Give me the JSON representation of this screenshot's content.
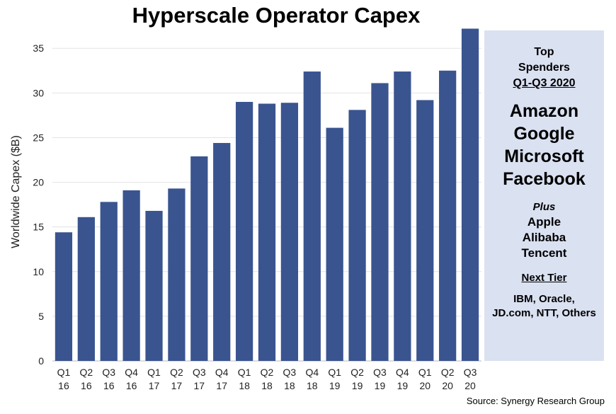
{
  "chart_data": {
    "type": "bar",
    "title": "Hyperscale Operator Capex",
    "xlabel": "",
    "ylabel": "Worldwide Capex ($B)",
    "ylim": [
      0,
      37
    ],
    "yticks": [
      0,
      5,
      10,
      15,
      20,
      25,
      30,
      35
    ],
    "grid": true,
    "bar_color": "#3a5490",
    "categories": [
      {
        "q": "Q1",
        "y": "16"
      },
      {
        "q": "Q2",
        "y": "16"
      },
      {
        "q": "Q3",
        "y": "16"
      },
      {
        "q": "Q4",
        "y": "16"
      },
      {
        "q": "Q1",
        "y": "17"
      },
      {
        "q": "Q2",
        "y": "17"
      },
      {
        "q": "Q3",
        "y": "17"
      },
      {
        "q": "Q4",
        "y": "17"
      },
      {
        "q": "Q1",
        "y": "18"
      },
      {
        "q": "Q2",
        "y": "18"
      },
      {
        "q": "Q3",
        "y": "18"
      },
      {
        "q": "Q4",
        "y": "18"
      },
      {
        "q": "Q1",
        "y": "19"
      },
      {
        "q": "Q2",
        "y": "19"
      },
      {
        "q": "Q3",
        "y": "19"
      },
      {
        "q": "Q4",
        "y": "19"
      },
      {
        "q": "Q1",
        "y": "20"
      },
      {
        "q": "Q2",
        "y": "20"
      },
      {
        "q": "Q3",
        "y": "20"
      }
    ],
    "values": [
      14.4,
      16.1,
      17.8,
      19.1,
      16.8,
      19.3,
      22.9,
      24.4,
      29.0,
      28.8,
      28.9,
      32.4,
      26.1,
      28.1,
      31.1,
      32.4,
      29.2,
      32.5,
      37.2
    ]
  },
  "side_panel": {
    "heading": [
      "Top",
      "Spenders",
      "Q1-Q3 2020"
    ],
    "primary": [
      "Amazon",
      "Google",
      "Microsoft",
      "Facebook"
    ],
    "plus_label": "Plus",
    "plus": [
      "Apple",
      "Alibaba",
      "Tencent"
    ],
    "next_tier_label": "Next Tier",
    "next_tier": "IBM, Oracle, JD.com, NTT, Others",
    "background": "#dae1f1"
  },
  "source": "Source: Synergy Research Group"
}
